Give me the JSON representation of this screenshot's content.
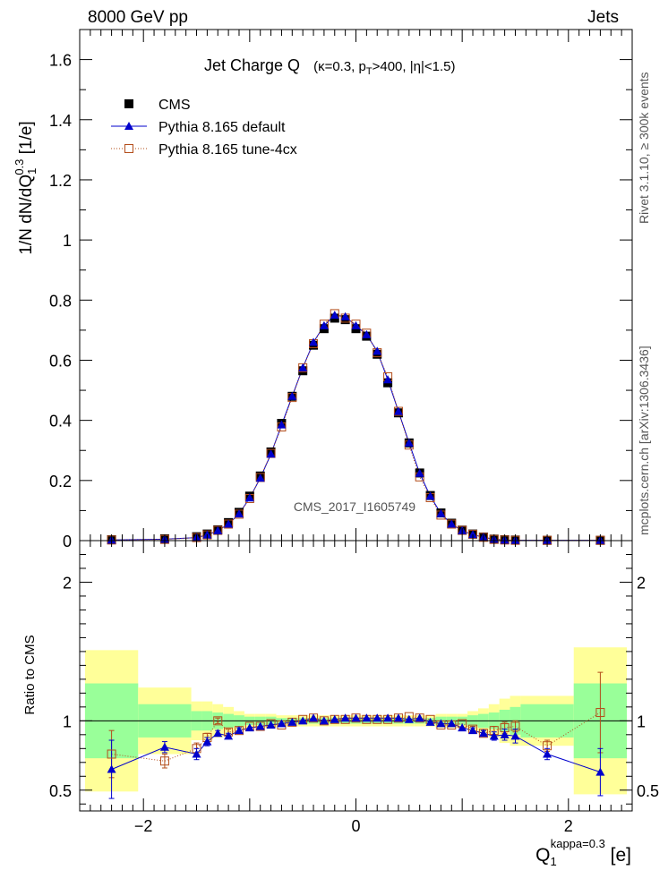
{
  "chart_data": {
    "type": "scatter",
    "header": {
      "left": "8000 GeV pp",
      "right": "Jets"
    },
    "side_labels": {
      "upper": "Rivet 3.1.10, ≥ 300k events",
      "lower": "mcplots.cern.ch [arXiv:1306.3436]"
    },
    "title": {
      "main": "Jet Charge Q",
      "params_pre": "(κ=0.3, p",
      "params_sub": "T",
      "params_post": ">400, |η|<1.5)"
    },
    "watermark": "CMS_2017_I1605749",
    "ylabel": {
      "pre": "1/N dN/dQ",
      "sub": "1",
      "sup": "0.3",
      "post": " [1/e]"
    },
    "ratio_ylabel": "Ratio to CMS",
    "xlabel": {
      "pre": "Q",
      "sub": "1",
      "sup": "kappa=0.3",
      "post": " [e]"
    },
    "xlim": [
      -2.6,
      2.6
    ],
    "ylim": [
      0,
      1.7
    ],
    "ratio_ylim": [
      0.35,
      2.3
    ],
    "x_ticks": [
      {
        "v": -2,
        "t": "−2"
      },
      {
        "v": 0,
        "t": "0"
      },
      {
        "v": 2,
        "t": "2"
      }
    ],
    "y_ticks": [
      {
        "v": 0,
        "t": "0"
      },
      {
        "v": 0.2,
        "t": "0.2"
      },
      {
        "v": 0.4,
        "t": "0.4"
      },
      {
        "v": 0.6,
        "t": "0.6"
      },
      {
        "v": 0.8,
        "t": "0.8"
      },
      {
        "v": 1.0,
        "t": "1"
      },
      {
        "v": 1.2,
        "t": "1.2"
      },
      {
        "v": 1.4,
        "t": "1.4"
      },
      {
        "v": 1.6,
        "t": "1.6"
      }
    ],
    "ratio_ticks": [
      {
        "v": 0.5,
        "t": "0.5"
      },
      {
        "v": 1,
        "t": "1"
      },
      {
        "v": 2,
        "t": "2"
      }
    ],
    "legend": [
      {
        "name": "CMS",
        "style": "square-filled"
      },
      {
        "name": "Pythia 8.165 default",
        "style": "triangle-line"
      },
      {
        "name": "Pythia 8.165 tune-4cx",
        "style": "open-square-dotted"
      }
    ],
    "bins": [
      [
        -2.55,
        -2.05
      ],
      [
        -2.05,
        -1.55
      ],
      [
        -1.55,
        -1.45
      ],
      [
        -1.45,
        -1.35
      ],
      [
        -1.35,
        -1.25
      ],
      [
        -1.25,
        -1.15
      ],
      [
        -1.15,
        -1.05
      ],
      [
        -1.05,
        -0.95
      ],
      [
        -0.95,
        -0.85
      ],
      [
        -0.85,
        -0.75
      ],
      [
        -0.75,
        -0.65
      ],
      [
        -0.65,
        -0.55
      ],
      [
        -0.55,
        -0.45
      ],
      [
        -0.45,
        -0.35
      ],
      [
        -0.35,
        -0.25
      ],
      [
        -0.25,
        -0.15
      ],
      [
        -0.15,
        -0.05
      ],
      [
        -0.05,
        0.05
      ],
      [
        0.05,
        0.15
      ],
      [
        0.15,
        0.25
      ],
      [
        0.25,
        0.35
      ],
      [
        0.35,
        0.45
      ],
      [
        0.45,
        0.55
      ],
      [
        0.55,
        0.65
      ],
      [
        0.65,
        0.75
      ],
      [
        0.75,
        0.85
      ],
      [
        0.85,
        0.95
      ],
      [
        0.95,
        1.05
      ],
      [
        1.05,
        1.15
      ],
      [
        1.15,
        1.25
      ],
      [
        1.25,
        1.35
      ],
      [
        1.35,
        1.45
      ],
      [
        1.45,
        1.55
      ],
      [
        1.55,
        2.05
      ],
      [
        2.05,
        2.55
      ]
    ],
    "x": [
      -2.3,
      -1.8,
      -1.5,
      -1.4,
      -1.3,
      -1.2,
      -1.1,
      -1.0,
      -0.9,
      -0.8,
      -0.7,
      -0.6,
      -0.5,
      -0.4,
      -0.3,
      -0.2,
      -0.1,
      0.0,
      0.1,
      0.2,
      0.3,
      0.4,
      0.5,
      0.6,
      0.7,
      0.8,
      0.9,
      1.0,
      1.1,
      1.2,
      1.3,
      1.4,
      1.5,
      1.8,
      2.3
    ],
    "cms": [
      0.003,
      0.006,
      0.013,
      0.022,
      0.036,
      0.06,
      0.094,
      0.148,
      0.215,
      0.295,
      0.39,
      0.48,
      0.565,
      0.65,
      0.705,
      0.74,
      0.735,
      0.705,
      0.68,
      0.62,
      0.525,
      0.425,
      0.325,
      0.225,
      0.15,
      0.092,
      0.058,
      0.035,
      0.022,
      0.012,
      0.005,
      0.003,
      0.002,
      0.001,
      0.001
    ],
    "pythia_default": [
      0.002,
      0.005,
      0.01,
      0.019,
      0.033,
      0.055,
      0.089,
      0.142,
      0.208,
      0.288,
      0.385,
      0.48,
      0.575,
      0.66,
      0.715,
      0.75,
      0.745,
      0.715,
      0.685,
      0.63,
      0.535,
      0.43,
      0.325,
      0.224,
      0.148,
      0.09,
      0.055,
      0.033,
      0.02,
      0.011,
      0.005,
      0.002,
      0.001,
      0.001,
      0.001
    ],
    "pythia_tune": [
      0.002,
      0.004,
      0.01,
      0.019,
      0.034,
      0.055,
      0.088,
      0.14,
      0.21,
      0.29,
      0.378,
      0.476,
      0.575,
      0.655,
      0.72,
      0.755,
      0.74,
      0.72,
      0.69,
      0.625,
      0.545,
      0.43,
      0.318,
      0.212,
      0.143,
      0.085,
      0.055,
      0.034,
      0.021,
      0.011,
      0.004,
      0.002,
      0.001,
      0.001,
      0.001
    ],
    "ratio_default": [
      0.65,
      0.81,
      0.76,
      0.85,
      0.91,
      0.89,
      0.93,
      0.95,
      0.96,
      0.97,
      0.98,
      0.99,
      1.0,
      1.02,
      1.0,
      1.01,
      1.02,
      1.02,
      1.02,
      1.02,
      1.02,
      1.02,
      1.01,
      1.02,
      0.99,
      0.98,
      0.98,
      0.95,
      0.93,
      0.91,
      0.89,
      0.9,
      0.89,
      0.76,
      0.63
    ],
    "ratio_tune": [
      0.76,
      0.71,
      0.8,
      0.88,
      1.0,
      0.92,
      0.93,
      0.96,
      0.96,
      0.98,
      0.97,
      0.99,
      1.01,
      1.02,
      1.0,
      1.01,
      1.01,
      1.02,
      1.01,
      1.01,
      1.01,
      1.02,
      1.03,
      1.02,
      1.01,
      0.97,
      0.97,
      0.98,
      0.94,
      0.91,
      0.93,
      0.95,
      0.96,
      0.82,
      1.06
    ],
    "ratio_default_err": [
      0.21,
      0.04,
      0.04,
      0.03,
      0.02,
      0.02,
      0.02,
      0.01,
      0.01,
      0.01,
      0.01,
      0.01,
      0.01,
      0.01,
      0.01,
      0.01,
      0.01,
      0.01,
      0.01,
      0.01,
      0.01,
      0.01,
      0.01,
      0.01,
      0.01,
      0.01,
      0.01,
      0.01,
      0.02,
      0.02,
      0.03,
      0.04,
      0.05,
      0.04,
      0.17
    ],
    "ratio_tune_err": [
      0.17,
      0.05,
      0.04,
      0.03,
      0.02,
      0.02,
      0.02,
      0.01,
      0.01,
      0.01,
      0.01,
      0.01,
      0.01,
      0.01,
      0.01,
      0.01,
      0.01,
      0.01,
      0.01,
      0.01,
      0.01,
      0.01,
      0.01,
      0.01,
      0.01,
      0.01,
      0.01,
      0.01,
      0.02,
      0.02,
      0.03,
      0.04,
      0.04,
      0.04,
      0.29
    ],
    "band_inner": [
      0.27,
      0.12,
      0.07,
      0.07,
      0.06,
      0.05,
      0.04,
      0.03,
      0.03,
      0.03,
      0.02,
      0.02,
      0.02,
      0.02,
      0.02,
      0.02,
      0.02,
      0.02,
      0.02,
      0.02,
      0.02,
      0.02,
      0.02,
      0.02,
      0.02,
      0.03,
      0.03,
      0.03,
      0.04,
      0.05,
      0.06,
      0.08,
      0.1,
      0.12,
      0.27
    ],
    "band_outer": [
      0.51,
      0.24,
      0.14,
      0.14,
      0.12,
      0.1,
      0.07,
      0.05,
      0.05,
      0.05,
      0.04,
      0.04,
      0.04,
      0.04,
      0.04,
      0.04,
      0.04,
      0.04,
      0.04,
      0.04,
      0.04,
      0.04,
      0.04,
      0.04,
      0.04,
      0.05,
      0.05,
      0.05,
      0.07,
      0.09,
      0.12,
      0.16,
      0.18,
      0.18,
      0.53
    ],
    "colors": {
      "data": "#000000",
      "default": "#0000cc",
      "tune": "#b34d1a",
      "band_inner": "#99ff99",
      "band_outer": "#ffff99"
    }
  }
}
